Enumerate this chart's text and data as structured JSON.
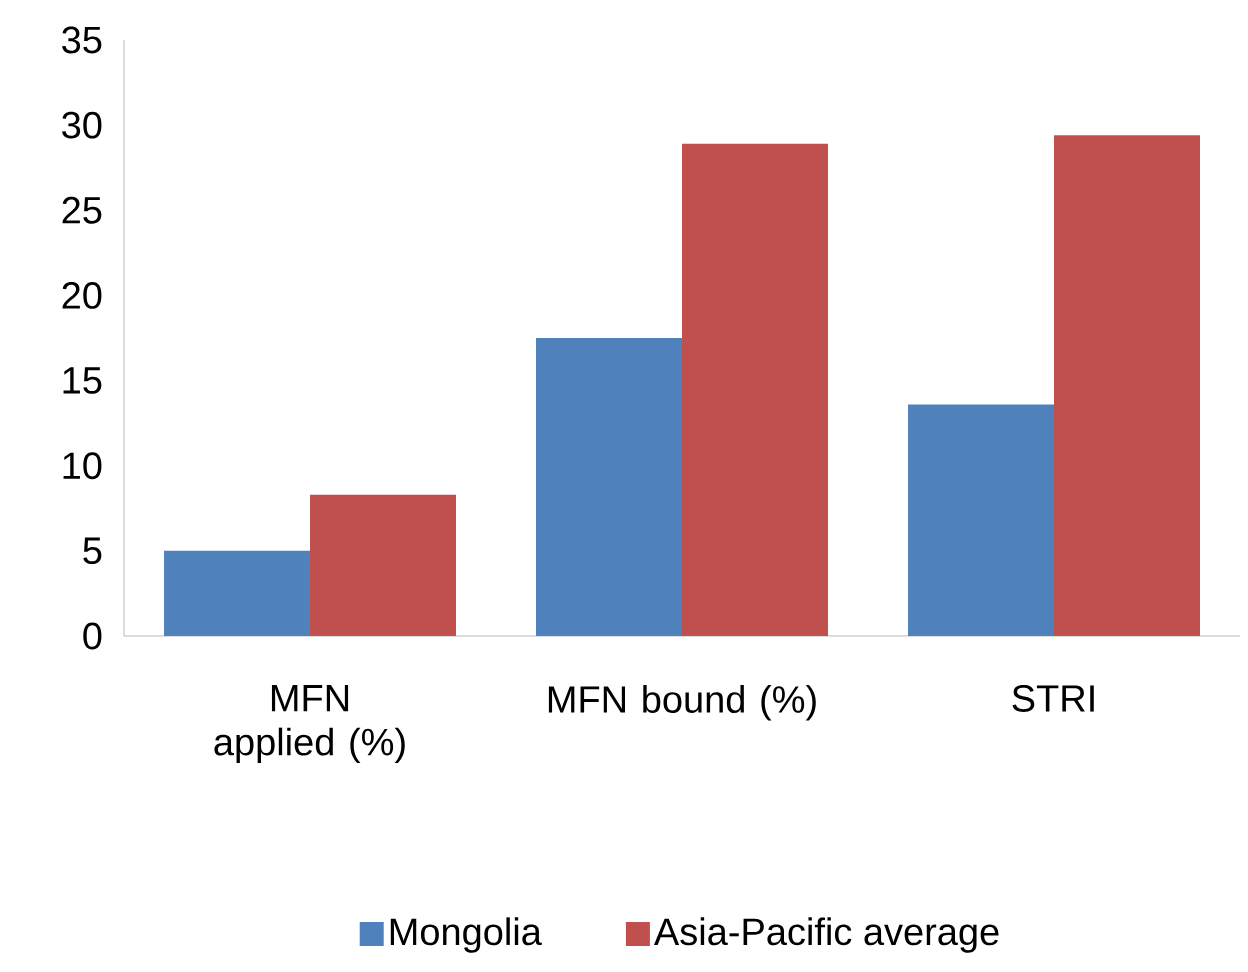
{
  "chart_data": {
    "type": "bar",
    "categories": [
      "MFN applied (%)",
      "MFN bound (%)",
      "STRI"
    ],
    "series": [
      {
        "name": "Mongolia",
        "color": "#4f81bd",
        "values": [
          5.0,
          17.5,
          13.6
        ]
      },
      {
        "name": "Asia-Pacific average",
        "color": "#c0504d",
        "values": [
          8.3,
          28.9,
          29.4
        ]
      }
    ],
    "ylim": [
      0,
      35
    ],
    "yticks": [
      0,
      5,
      10,
      15,
      20,
      25,
      30,
      35
    ],
    "legend": "bottom",
    "grid": false
  }
}
